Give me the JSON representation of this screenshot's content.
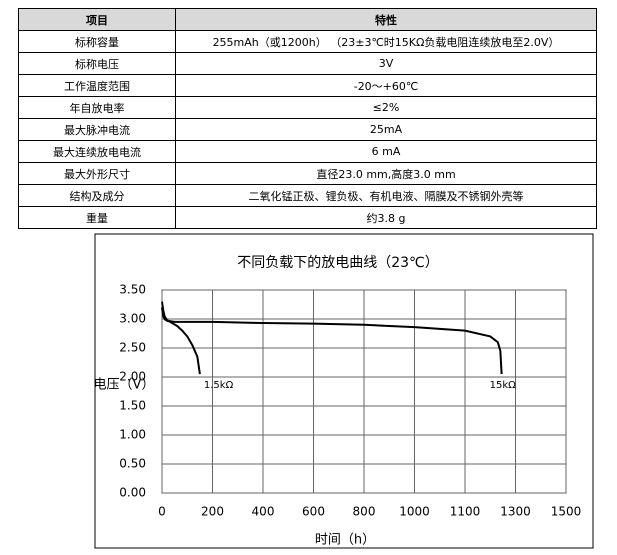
{
  "table": {
    "header": [
      "项目",
      "特性"
    ],
    "rows": [
      [
        "标称容量",
        "255mAh（或1200h） （23±3℃时15KΩ负载电阻连续放电至2.0V）"
      ],
      [
        "标称电压",
        "3V"
      ],
      [
        "工作温度范围",
        "-20～+60℃"
      ],
      [
        "年自放电率",
        "≤2%"
      ],
      [
        "最大脉冲电流",
        "25mA"
      ],
      [
        "最大连续放电电流",
        "6 mA"
      ],
      [
        "最大外形尺寸",
        "直径23.0 mm,高度3.0 mm"
      ],
      [
        "结构及成分",
        "二氧化锰正极、锂负极、有机电液、隔膜及不锈钢外壳等"
      ],
      [
        "重量",
        "约3.8 g"
      ]
    ]
  },
  "chart_data": {
    "type": "line",
    "title": "不同负载下的放电曲线（23℃）",
    "x_label": "时间（h）",
    "y_label": "电压（V）",
    "xlim": [
      0,
      1500
    ],
    "xticks": [
      0,
      200,
      400,
      600,
      800,
      1000,
      1100,
      1300,
      1500
    ],
    "ylim": [
      0,
      3.5
    ],
    "yticks": [
      {
        "value": 3.5,
        "label": "3.50"
      },
      {
        "value": 3,
        "label": "3.00"
      },
      {
        "value": 2.5,
        "label": "2.50"
      },
      {
        "value": 2,
        "label": "2.00"
      },
      {
        "value": 1.5,
        "label": "1.50"
      },
      {
        "value": 1,
        "label": "1.00"
      },
      {
        "value": 0.5,
        "label": "0.50"
      },
      {
        "value": 0,
        "label": "0.00"
      }
    ],
    "grid": true,
    "series": [
      {
        "name": "1.5kΩ",
        "color": "#000000",
        "x": [
          0,
          5,
          10,
          20,
          40,
          60,
          80,
          100,
          120,
          140,
          150
        ],
        "values": [
          3.3,
          3.15,
          3.05,
          2.98,
          2.93,
          2.88,
          2.8,
          2.7,
          2.55,
          2.35,
          2.05
        ]
      },
      {
        "name": "15kΩ",
        "color": "#000000",
        "x": [
          0,
          5,
          10,
          20,
          50,
          100,
          200,
          400,
          600,
          800,
          1000,
          1100,
          1200,
          1230,
          1240,
          1245
        ],
        "values": [
          3.2,
          3.05,
          3.0,
          2.97,
          2.95,
          2.95,
          2.95,
          2.93,
          2.92,
          2.9,
          2.86,
          2.8,
          2.7,
          2.6,
          2.45,
          2.05
        ]
      }
    ]
  }
}
